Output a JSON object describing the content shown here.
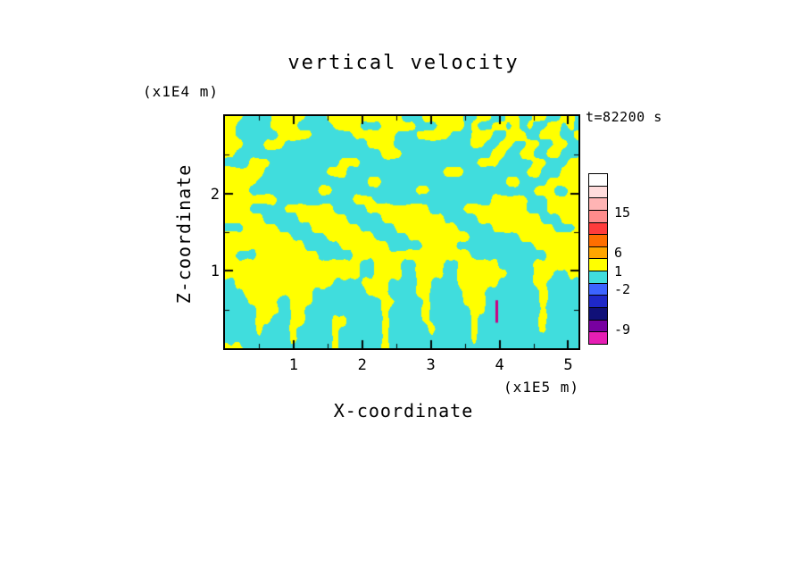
{
  "title": "vertical velocity",
  "annotations": {
    "time": "t=82200 s",
    "y_units": "(x1E4 m)",
    "x_units": "(x1E5 m)"
  },
  "axes": {
    "x": {
      "label": "X-coordinate",
      "range": [
        0,
        5.15
      ],
      "ticks": [
        1,
        2,
        3,
        4,
        5
      ],
      "minor_ticks": [
        0.5,
        1.5,
        2.5,
        3.5,
        4.5
      ]
    },
    "z": {
      "label": "Z-coordinate",
      "range": [
        0,
        3.0
      ],
      "ticks": [
        1,
        2
      ],
      "minor_ticks": [
        0.5,
        1.5,
        2.5
      ]
    }
  },
  "chart_data": {
    "type": "heatmap",
    "title": "vertical velocity",
    "xlabel": "X-coordinate (x1E5 m)",
    "ylabel": "Z-coordinate (x1E4 m)",
    "time": "t=82200 s",
    "x_range": [
      0,
      5.15
    ],
    "z_range": [
      0,
      3.0
    ],
    "grid": false,
    "legend_position": "right-colorbar",
    "labeled_levels": [
      15,
      6,
      1,
      -2,
      -9
    ],
    "positive_color": "#ffff00",
    "negative_color": "#40dddd",
    "colorbar": {
      "cells": [
        "#ffffff",
        "#ffdcdc",
        "#ffb4b4",
        "#ff8c8c",
        "#ff3c3c",
        "#ff6e00",
        "#ffa500",
        "#ffff00",
        "#40dddd",
        "#3c64ff",
        "#1e28c8",
        "#101078",
        "#7800a0",
        "#e61eb4"
      ],
      "labels": [
        {
          "text": "15",
          "boundary": 3.2
        },
        {
          "text": "6",
          "boundary": 6.5
        },
        {
          "text": "1",
          "boundary": 8
        },
        {
          "text": "-2",
          "boundary": 9.5
        },
        {
          "text": "-9",
          "boundary": 12.8
        }
      ]
    },
    "field_encoding": "Two-tone filled contour field: 'y' = yellow cells (w between 1 and 6), 'c' = cyan cells (w between -2 and 1). 26 rows top-to-bottom span z = 3.0 .. 0 (x1E4 m); 52 cols left-to-right span x = 0 .. 5.15 (x1E5 m). Values are bilinearly smoothed.",
    "field_rows": [
      "yyyccccyyyyycccyyyyyyyyyyycccyyyyyyccyyccyyccyyccyyc",
      "yycccccyyyycccccyyyycccyyyyycccyyyycyccyycycyccyycyc",
      "yyccccccyyyyyccccccyyyyyycccyyyyycccyyyccyyyccyyyccy",
      "yyycccyyyccccccccccccyyyycccccccccccyyccyyccyyccyycc",
      "yycccccccccccccccccccccyyycccccccccccccyyccyyccyyccc",
      "ccccyyyccccccccccyyycccccccccccccccccyyycccccyycccyy",
      "yyyyyycccccccccyyyccccccccccccccyyycccccccccyycccyyy",
      "yyyyyccccccccccccccccyyccccccccccccccccccyyccccyyyyy",
      "yyyyccccccccccyyccccccccccccyycccccccccccccccyyyccyy",
      "yyyyyyyycccccccccccyyycccccccccccccccccyyyyycccyyyyy",
      "yyyycccccyyyyyyycccccyyyyyyyyycccccyyyyyyyyycccyyyyy",
      "yyyyyycccccyyyyyyycccccyyyyyyyyycccccyyyyyyyyycccyyy",
      "cccyyyyycccccyyyyyyycccccyyyyyyyyycccccyyyyyyyyycccy",
      "yyyyyyyyyycccccyyyyyyycccccyyyyyyyyycccccccyyyyyyyyy",
      "yyyyyyyyyyyycccccyyyyyyycccccyyyyycccccccccccyyyyyyy",
      "yycccyyyyyyyyycccccyyyyyyyyyyyyyyyyycccccccccccyyyyy",
      "yyyyyyyyyyyyyyyyyyyyccyyyyccyyyyccyyyyyycccccyyyyyyy",
      "yyyyyyyyyyyyyyyyyyyyccyyyyccyyyyccyyyyyyyccccyyyccyy",
      "ccyyyyyyyyyyyyyyccccyyyyccccyyccccyyyyyycccccyyccccc",
      "cccyyyyyyyyyyccccccccyyyccccyycccccyyyccccccccyccccc",
      "ccccyyyyccyyyccccccccccyyccccycccccyyyccccccccyccccc",
      "cccccyyyccyycccccccccccycccccyccccccyyccccccccyccccc",
      "cccccyycccyyccccyycccccycccccyccccccycccccccccyccccc",
      "cccccyccccycccccyccccccyccccccycccccycccccccccyccccc",
      "ccccccccccycccccyccccccyccccccccccccyccccccccccccccc",
      "yyycccccccccccccyccccccycccccccccccccccccccccccccccc"
    ],
    "anomaly": {
      "note": "narrow magenta negative streak",
      "color": "#cc0082",
      "x": 3.96,
      "z_from": 0.33,
      "z_to": 0.62
    }
  }
}
